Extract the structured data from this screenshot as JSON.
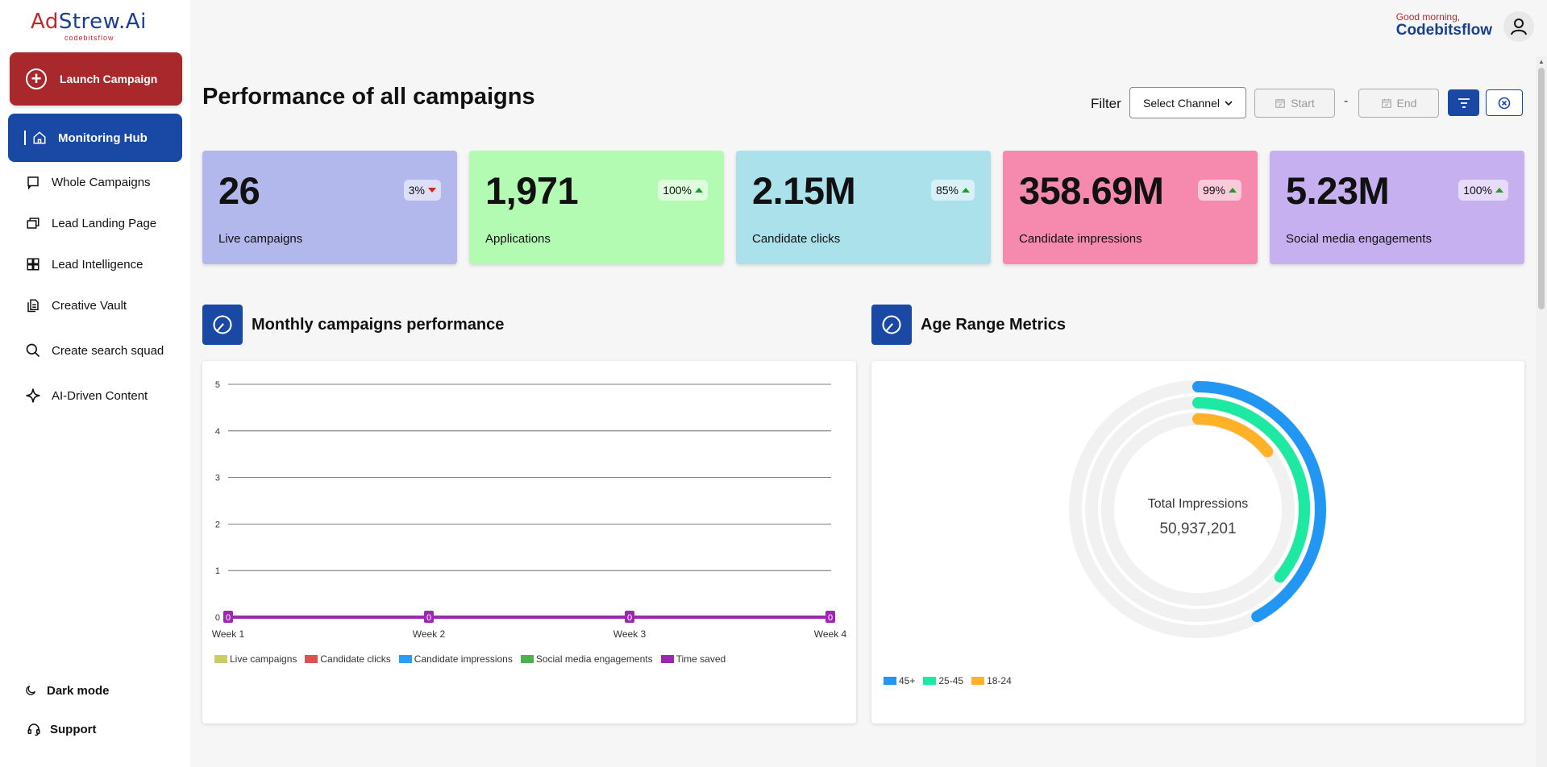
{
  "brand": {
    "name_prefix": "Ad",
    "name_rest": "Strew.Ai",
    "sub": "codebitsflow"
  },
  "sidebar": {
    "launch_label": "Launch Campaign",
    "active_label": "Monitoring Hub",
    "items": [
      {
        "label": "Whole Campaigns",
        "icon": "chat-square-icon"
      },
      {
        "label": "Lead Landing Page",
        "icon": "stacked-pages-icon"
      },
      {
        "label": "Lead Intelligence",
        "icon": "grid-icon"
      },
      {
        "label": "Creative Vault",
        "icon": "files-icon"
      },
      {
        "label": "Create search squad",
        "icon": "search-icon"
      },
      {
        "label": "AI-Driven Content",
        "icon": "sparkle-icon"
      }
    ],
    "dark_mode_label": "Dark mode",
    "support_label": "Support"
  },
  "header": {
    "greeting": "Good morning,",
    "user_name": "Codebitsflow"
  },
  "page": {
    "title": "Performance of all campaigns"
  },
  "filter": {
    "label": "Filter",
    "channel_value": "Select Channel",
    "start_placeholder": "Start",
    "end_placeholder": "End",
    "separator": "-"
  },
  "stats": [
    {
      "value": "26",
      "label": "Live campaigns",
      "change": "3%",
      "trend": "down",
      "color": "#b3b8ec"
    },
    {
      "value": "1,971",
      "label": "Applications",
      "change": "100%",
      "trend": "up",
      "color": "#b3fbb3"
    },
    {
      "value": "2.15M",
      "label": "Candidate clicks",
      "change": "85%",
      "trend": "up",
      "color": "#abe1eb"
    },
    {
      "value": "358.69M",
      "label": "Candidate impressions",
      "change": "99%",
      "trend": "up",
      "color": "#f58aae"
    },
    {
      "value": "5.23M",
      "label": "Social media engagements",
      "change": "100%",
      "trend": "up",
      "color": "#c7b0ef"
    }
  ],
  "sections": {
    "monthly_title": "Monthly campaigns performance",
    "age_title": "Age Range Metrics"
  },
  "donut": {
    "center_label": "Total Impressions",
    "center_value": "50,937,201"
  },
  "chart_data": [
    {
      "type": "line",
      "categories": [
        "Week 1",
        "Week 2",
        "Week 3",
        "Week 4"
      ],
      "ylim": [
        0,
        5
      ],
      "yticks": [
        0,
        1,
        2,
        3,
        4,
        5
      ],
      "grid": true,
      "legend_position": "bottom-left",
      "series": [
        {
          "name": "Live campaigns",
          "color": "#cccc66",
          "values": [
            0,
            0,
            0,
            0
          ]
        },
        {
          "name": "Candidate clicks",
          "color": "#d9534f",
          "values": [
            0,
            0,
            0,
            0
          ]
        },
        {
          "name": "Candidate impressions",
          "color": "#2a9df4",
          "values": [
            0,
            0,
            0,
            0
          ]
        },
        {
          "name": "Social media engagements",
          "color": "#4caf50",
          "values": [
            0,
            0,
            0,
            0
          ]
        },
        {
          "name": "Time saved",
          "color": "#9c27b0",
          "values": [
            0,
            0,
            0,
            0
          ]
        }
      ],
      "data_labels": [
        "0",
        "0",
        "0",
        "0"
      ]
    },
    {
      "type": "radial-bar",
      "legend_position": "bottom-left",
      "series": [
        {
          "name": "45+",
          "color": "#2196f3",
          "fraction": 0.42
        },
        {
          "name": "25-45",
          "color": "#1de9a3",
          "fraction": 0.36
        },
        {
          "name": "18-24",
          "color": "#ffb127",
          "fraction": 0.14
        }
      ]
    }
  ]
}
